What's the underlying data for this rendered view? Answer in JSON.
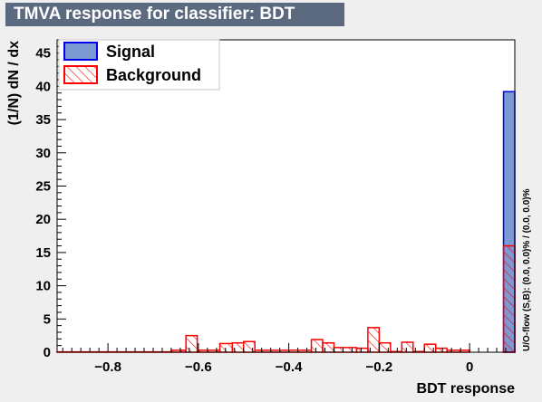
{
  "chart_data": {
    "type": "bar",
    "title": "TMVA response for classifier: BDT",
    "xlabel": "BDT response",
    "ylabel": "(1/N) dN / dx",
    "xlim": [
      -0.9125,
      0.1
    ],
    "ylim": [
      0,
      47
    ],
    "bin_width": 0.03,
    "x_ticks": [
      -0.8,
      -0.6,
      -0.4,
      -0.2,
      0
    ],
    "x_tick_labels": [
      "−0.8",
      "−0.6",
      "−0.4",
      "−0.2",
      "0"
    ],
    "y_ticks": [
      0,
      5,
      10,
      15,
      20,
      25,
      30,
      35,
      40,
      45
    ],
    "y_tick_labels": [
      "0",
      "5",
      "10",
      "15",
      "20",
      "25",
      "30",
      "35",
      "40",
      "45"
    ],
    "grid": false,
    "legend_position": "top-left",
    "overflow_note": "U/O-flow (S,B): (0.0, 0.0)% / (0.0, 0.0)%",
    "series": [
      {
        "name": "Signal",
        "style": "filled",
        "fill_color": "#7d99d1",
        "line_color": "#0000ee",
        "bins": [
          {
            "x0": 0.075,
            "x1": 0.1,
            "value": 39.2
          }
        ]
      },
      {
        "name": "Background",
        "style": "hatched",
        "fill_color": "#ff0000",
        "line_color": "#ff0000",
        "bins": [
          {
            "x0": -0.9125,
            "x1": -0.66,
            "value": 0.05
          },
          {
            "x0": -0.66,
            "x1": -0.6275,
            "value": 0.3
          },
          {
            "x0": -0.6275,
            "x1": -0.6025,
            "value": 2.5
          },
          {
            "x0": -0.6025,
            "x1": -0.5525,
            "value": 0.3
          },
          {
            "x0": -0.5525,
            "x1": -0.525,
            "value": 1.3
          },
          {
            "x0": -0.525,
            "x1": -0.5,
            "value": 1.4
          },
          {
            "x0": -0.5,
            "x1": -0.475,
            "value": 1.6
          },
          {
            "x0": -0.475,
            "x1": -0.35,
            "value": 0.3
          },
          {
            "x0": -0.35,
            "x1": -0.325,
            "value": 1.9
          },
          {
            "x0": -0.325,
            "x1": -0.3,
            "value": 1.4
          },
          {
            "x0": -0.3,
            "x1": -0.25,
            "value": 0.7
          },
          {
            "x0": -0.25,
            "x1": -0.225,
            "value": 0.6
          },
          {
            "x0": -0.225,
            "x1": -0.2,
            "value": 3.7
          },
          {
            "x0": -0.2,
            "x1": -0.175,
            "value": 1.4
          },
          {
            "x0": -0.175,
            "x1": -0.15,
            "value": 0.1
          },
          {
            "x0": -0.15,
            "x1": -0.125,
            "value": 1.5
          },
          {
            "x0": -0.125,
            "x1": -0.1,
            "value": 0.1
          },
          {
            "x0": -0.1,
            "x1": -0.075,
            "value": 1.2
          },
          {
            "x0": -0.075,
            "x1": -0.05,
            "value": 0.6
          },
          {
            "x0": -0.05,
            "x1": 0.0,
            "value": 0.3
          },
          {
            "x0": 0.075,
            "x1": 0.1,
            "value": 16.0
          }
        ]
      }
    ]
  }
}
